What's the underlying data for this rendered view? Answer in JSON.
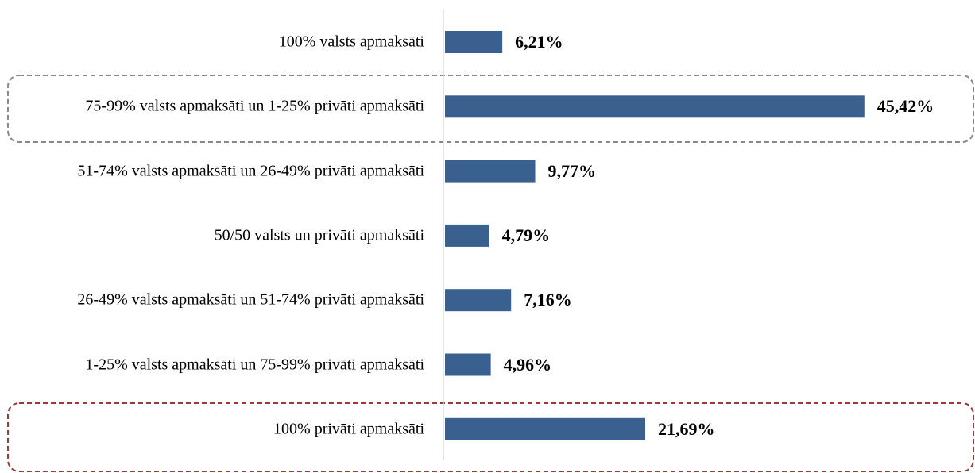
{
  "chart_data": {
    "type": "bar",
    "orientation": "horizontal",
    "categories": [
      "100% valsts apmaksāti",
      "75-99% valsts apmaksāti un 1-25% privāti apmaksāti",
      "51-74% valsts apmaksāti un 26-49% privāti apmaksāti",
      "50/50 valsts un privāti apmaksāti",
      "26-49% valsts apmaksāti un 51-74% privāti apmaksāti",
      "1-25% valsts apmaksāti un 75-99% privāti apmaksāti",
      "100% privāti apmaksāti"
    ],
    "values": [
      6.21,
      45.42,
      9.77,
      4.79,
      7.16,
      4.96,
      21.69
    ],
    "value_labels": [
      "6,21%",
      "45,42%",
      "9,77%",
      "4,79%",
      "7,16%",
      "4,96%",
      "21,69%"
    ],
    "color": "#3a6090",
    "xlim": [
      0,
      50
    ]
  }
}
